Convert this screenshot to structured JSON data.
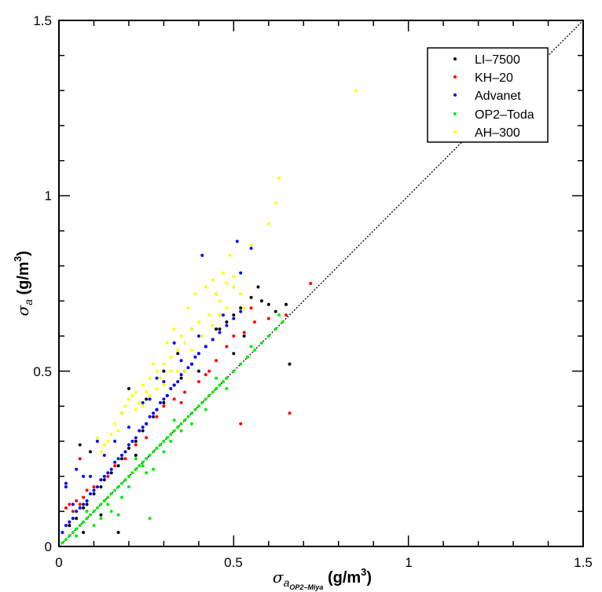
{
  "chart_data": {
    "type": "scatter",
    "title": "",
    "xlabel": "σa_OP2–Miya (g/m3)",
    "ylabel": "σa (g/m3)",
    "xlim": [
      0,
      1.5
    ],
    "ylim": [
      0,
      1.5
    ],
    "x_ticks": [
      "0",
      "0.5",
      "1",
      "1.5"
    ],
    "y_ticks": [
      "0",
      "0.5",
      "1",
      "1.5"
    ],
    "grid": false,
    "legend_position": "top-right",
    "reference_line": {
      "style": "dotted",
      "x": [
        0,
        1.5
      ],
      "y": [
        0,
        1.5
      ]
    },
    "series": [
      {
        "name": "LI–7500",
        "color": "#000000",
        "points": [
          [
            0.03,
            0.06
          ],
          [
            0.05,
            0.08
          ],
          [
            0.07,
            0.11
          ],
          [
            0.08,
            0.12
          ],
          [
            0.1,
            0.15
          ],
          [
            0.12,
            0.17
          ],
          [
            0.13,
            0.19
          ],
          [
            0.15,
            0.21
          ],
          [
            0.17,
            0.23
          ],
          [
            0.18,
            0.25
          ],
          [
            0.2,
            0.28
          ],
          [
            0.22,
            0.3
          ],
          [
            0.24,
            0.33
          ],
          [
            0.25,
            0.35
          ],
          [
            0.27,
            0.37
          ],
          [
            0.28,
            0.39
          ],
          [
            0.3,
            0.41
          ],
          [
            0.31,
            0.43
          ],
          [
            0.33,
            0.46
          ],
          [
            0.35,
            0.48
          ],
          [
            0.36,
            0.5
          ],
          [
            0.38,
            0.52
          ],
          [
            0.4,
            0.55
          ],
          [
            0.42,
            0.57
          ],
          [
            0.44,
            0.59
          ],
          [
            0.46,
            0.62
          ],
          [
            0.48,
            0.64
          ],
          [
            0.5,
            0.66
          ],
          [
            0.52,
            0.68
          ],
          [
            0.55,
            0.71
          ],
          [
            0.57,
            0.74
          ],
          [
            0.6,
            0.69
          ],
          [
            0.62,
            0.67
          ],
          [
            0.65,
            0.69
          ],
          [
            0.66,
            0.52
          ],
          [
            0.06,
            0.29
          ],
          [
            0.09,
            0.27
          ],
          [
            0.2,
            0.45
          ],
          [
            0.25,
            0.42
          ],
          [
            0.3,
            0.5
          ],
          [
            0.34,
            0.55
          ],
          [
            0.4,
            0.5
          ],
          [
            0.45,
            0.62
          ],
          [
            0.5,
            0.55
          ],
          [
            0.53,
            0.6
          ],
          [
            0.58,
            0.7
          ],
          [
            0.07,
            0.04
          ],
          [
            0.17,
            0.04
          ],
          [
            0.12,
            0.09
          ],
          [
            0.22,
            0.26
          ]
        ]
      },
      {
        "name": "KH–20",
        "color": "#ff0000",
        "points": [
          [
            0.02,
            0.11
          ],
          [
            0.03,
            0.12
          ],
          [
            0.04,
            0.1
          ],
          [
            0.05,
            0.13
          ],
          [
            0.06,
            0.12
          ],
          [
            0.07,
            0.14
          ],
          [
            0.08,
            0.16
          ],
          [
            0.1,
            0.17
          ],
          [
            0.12,
            0.19
          ],
          [
            0.14,
            0.2
          ],
          [
            0.16,
            0.23
          ],
          [
            0.19,
            0.25
          ],
          [
            0.22,
            0.29
          ],
          [
            0.25,
            0.31
          ],
          [
            0.28,
            0.37
          ],
          [
            0.3,
            0.4
          ],
          [
            0.33,
            0.42
          ],
          [
            0.36,
            0.44
          ],
          [
            0.4,
            0.47
          ],
          [
            0.43,
            0.5
          ],
          [
            0.45,
            0.53
          ],
          [
            0.48,
            0.57
          ],
          [
            0.5,
            0.6
          ],
          [
            0.53,
            0.61
          ],
          [
            0.56,
            0.64
          ],
          [
            0.6,
            0.65
          ],
          [
            0.65,
            0.66
          ],
          [
            0.72,
            0.75
          ],
          [
            0.66,
            0.38
          ],
          [
            0.52,
            0.35
          ],
          [
            0.06,
            0.25
          ],
          [
            0.46,
            0.66
          ],
          [
            0.55,
            0.68
          ],
          [
            0.42,
            0.49
          ],
          [
            0.35,
            0.41
          ]
        ]
      },
      {
        "name": "Advanet",
        "color": "#0000ff",
        "points": [
          [
            0.01,
            0.04
          ],
          [
            0.02,
            0.06
          ],
          [
            0.03,
            0.07
          ],
          [
            0.04,
            0.08
          ],
          [
            0.05,
            0.1
          ],
          [
            0.06,
            0.11
          ],
          [
            0.07,
            0.12
          ],
          [
            0.08,
            0.13
          ],
          [
            0.09,
            0.15
          ],
          [
            0.1,
            0.16
          ],
          [
            0.11,
            0.17
          ],
          [
            0.12,
            0.19
          ],
          [
            0.13,
            0.2
          ],
          [
            0.14,
            0.21
          ],
          [
            0.15,
            0.22
          ],
          [
            0.16,
            0.24
          ],
          [
            0.17,
            0.25
          ],
          [
            0.18,
            0.26
          ],
          [
            0.19,
            0.27
          ],
          [
            0.2,
            0.29
          ],
          [
            0.21,
            0.3
          ],
          [
            0.22,
            0.31
          ],
          [
            0.23,
            0.33
          ],
          [
            0.24,
            0.34
          ],
          [
            0.25,
            0.35
          ],
          [
            0.26,
            0.37
          ],
          [
            0.27,
            0.38
          ],
          [
            0.28,
            0.39
          ],
          [
            0.29,
            0.41
          ],
          [
            0.3,
            0.42
          ],
          [
            0.31,
            0.43
          ],
          [
            0.32,
            0.45
          ],
          [
            0.33,
            0.46
          ],
          [
            0.34,
            0.47
          ],
          [
            0.35,
            0.49
          ],
          [
            0.36,
            0.5
          ],
          [
            0.37,
            0.51
          ],
          [
            0.38,
            0.52
          ],
          [
            0.39,
            0.54
          ],
          [
            0.4,
            0.55
          ],
          [
            0.42,
            0.57
          ],
          [
            0.44,
            0.59
          ],
          [
            0.46,
            0.61
          ],
          [
            0.48,
            0.63
          ],
          [
            0.5,
            0.65
          ],
          [
            0.52,
            0.67
          ],
          [
            0.41,
            0.83
          ],
          [
            0.51,
            0.87
          ],
          [
            0.55,
            0.85
          ],
          [
            0.02,
            0.17
          ],
          [
            0.05,
            0.22
          ],
          [
            0.09,
            0.2
          ],
          [
            0.11,
            0.3
          ],
          [
            0.18,
            0.38
          ],
          [
            0.24,
            0.41
          ],
          [
            0.28,
            0.48
          ],
          [
            0.33,
            0.58
          ],
          [
            0.38,
            0.62
          ],
          [
            0.45,
            0.72
          ],
          [
            0.52,
            0.78
          ],
          [
            0.02,
            0.18
          ],
          [
            0.04,
            0.12
          ],
          [
            0.07,
            0.2
          ],
          [
            0.13,
            0.26
          ],
          [
            0.16,
            0.3
          ],
          [
            0.2,
            0.34
          ],
          [
            0.26,
            0.42
          ],
          [
            0.3,
            0.47
          ],
          [
            0.35,
            0.53
          ],
          [
            0.4,
            0.6
          ],
          [
            0.47,
            0.66
          ]
        ]
      },
      {
        "name": "OP2–Toda",
        "color": "#00ee00",
        "points": [
          [
            0.01,
            0.01
          ],
          [
            0.02,
            0.02
          ],
          [
            0.03,
            0.03
          ],
          [
            0.04,
            0.04
          ],
          [
            0.05,
            0.05
          ],
          [
            0.06,
            0.06
          ],
          [
            0.07,
            0.07
          ],
          [
            0.08,
            0.08
          ],
          [
            0.09,
            0.09
          ],
          [
            0.1,
            0.1
          ],
          [
            0.11,
            0.11
          ],
          [
            0.12,
            0.12
          ],
          [
            0.13,
            0.13
          ],
          [
            0.14,
            0.14
          ],
          [
            0.15,
            0.15
          ],
          [
            0.16,
            0.16
          ],
          [
            0.17,
            0.17
          ],
          [
            0.18,
            0.18
          ],
          [
            0.19,
            0.19
          ],
          [
            0.2,
            0.2
          ],
          [
            0.21,
            0.21
          ],
          [
            0.22,
            0.22
          ],
          [
            0.23,
            0.23
          ],
          [
            0.24,
            0.24
          ],
          [
            0.25,
            0.25
          ],
          [
            0.26,
            0.26
          ],
          [
            0.27,
            0.27
          ],
          [
            0.28,
            0.28
          ],
          [
            0.29,
            0.29
          ],
          [
            0.3,
            0.3
          ],
          [
            0.31,
            0.31
          ],
          [
            0.32,
            0.32
          ],
          [
            0.33,
            0.33
          ],
          [
            0.34,
            0.34
          ],
          [
            0.35,
            0.35
          ],
          [
            0.36,
            0.36
          ],
          [
            0.37,
            0.37
          ],
          [
            0.38,
            0.38
          ],
          [
            0.39,
            0.39
          ],
          [
            0.4,
            0.4
          ],
          [
            0.41,
            0.41
          ],
          [
            0.42,
            0.42
          ],
          [
            0.43,
            0.43
          ],
          [
            0.44,
            0.44
          ],
          [
            0.45,
            0.45
          ],
          [
            0.46,
            0.46
          ],
          [
            0.47,
            0.47
          ],
          [
            0.48,
            0.48
          ],
          [
            0.5,
            0.5
          ],
          [
            0.52,
            0.52
          ],
          [
            0.54,
            0.54
          ],
          [
            0.56,
            0.56
          ],
          [
            0.58,
            0.58
          ],
          [
            0.6,
            0.6
          ],
          [
            0.62,
            0.62
          ],
          [
            0.64,
            0.64
          ],
          [
            0.12,
            0.08
          ],
          [
            0.15,
            0.1
          ],
          [
            0.18,
            0.14
          ],
          [
            0.2,
            0.17
          ],
          [
            0.25,
            0.21
          ],
          [
            0.27,
            0.22
          ],
          [
            0.3,
            0.27
          ],
          [
            0.35,
            0.33
          ],
          [
            0.42,
            0.39
          ],
          [
            0.48,
            0.45
          ],
          [
            0.26,
            0.08
          ],
          [
            0.17,
            0.09
          ],
          [
            0.1,
            0.06
          ],
          [
            0.05,
            0.03
          ],
          [
            0.08,
            0.1
          ],
          [
            0.22,
            0.25
          ],
          [
            0.33,
            0.36
          ],
          [
            0.45,
            0.48
          ],
          [
            0.55,
            0.57
          ],
          [
            0.63,
            0.66
          ],
          [
            0.38,
            0.35
          ],
          [
            0.32,
            0.3
          ],
          [
            0.24,
            0.23
          ],
          [
            0.14,
            0.12
          ]
        ]
      },
      {
        "name": "AH–300",
        "color": "#ffff00",
        "points": [
          [
            0.85,
            1.3
          ],
          [
            0.63,
            1.05
          ],
          [
            0.62,
            0.98
          ],
          [
            0.6,
            0.92
          ],
          [
            0.55,
            0.86
          ],
          [
            0.49,
            0.83
          ],
          [
            0.47,
            0.78
          ],
          [
            0.44,
            0.76
          ],
          [
            0.5,
            0.74
          ],
          [
            0.52,
            0.72
          ],
          [
            0.46,
            0.7
          ],
          [
            0.48,
            0.68
          ],
          [
            0.43,
            0.66
          ],
          [
            0.4,
            0.64
          ],
          [
            0.38,
            0.62
          ],
          [
            0.35,
            0.6
          ],
          [
            0.36,
            0.58
          ],
          [
            0.34,
            0.56
          ],
          [
            0.32,
            0.54
          ],
          [
            0.3,
            0.52
          ],
          [
            0.28,
            0.5
          ],
          [
            0.26,
            0.48
          ],
          [
            0.24,
            0.46
          ],
          [
            0.22,
            0.44
          ],
          [
            0.2,
            0.42
          ],
          [
            0.19,
            0.4
          ],
          [
            0.18,
            0.38
          ],
          [
            0.16,
            0.35
          ],
          [
            0.15,
            0.32
          ],
          [
            0.14,
            0.3
          ],
          [
            0.13,
            0.29
          ],
          [
            0.12,
            0.27
          ],
          [
            0.31,
            0.58
          ],
          [
            0.33,
            0.62
          ],
          [
            0.37,
            0.68
          ],
          [
            0.39,
            0.72
          ],
          [
            0.42,
            0.74
          ],
          [
            0.45,
            0.72
          ],
          [
            0.48,
            0.75
          ],
          [
            0.5,
            0.77
          ],
          [
            0.29,
            0.48
          ],
          [
            0.27,
            0.52
          ],
          [
            0.25,
            0.44
          ],
          [
            0.23,
            0.41
          ],
          [
            0.21,
            0.43
          ],
          [
            0.41,
            0.6
          ],
          [
            0.44,
            0.63
          ],
          [
            0.36,
            0.5
          ],
          [
            0.34,
            0.5
          ],
          [
            0.3,
            0.46
          ],
          [
            0.22,
            0.39
          ],
          [
            0.17,
            0.33
          ],
          [
            0.11,
            0.31
          ],
          [
            0.26,
            0.43
          ],
          [
            0.38,
            0.56
          ],
          [
            0.46,
            0.66
          ],
          [
            0.53,
            0.68
          ],
          [
            0.32,
            0.5
          ],
          [
            0.28,
            0.45
          ],
          [
            0.24,
            0.4
          ]
        ]
      }
    ]
  }
}
